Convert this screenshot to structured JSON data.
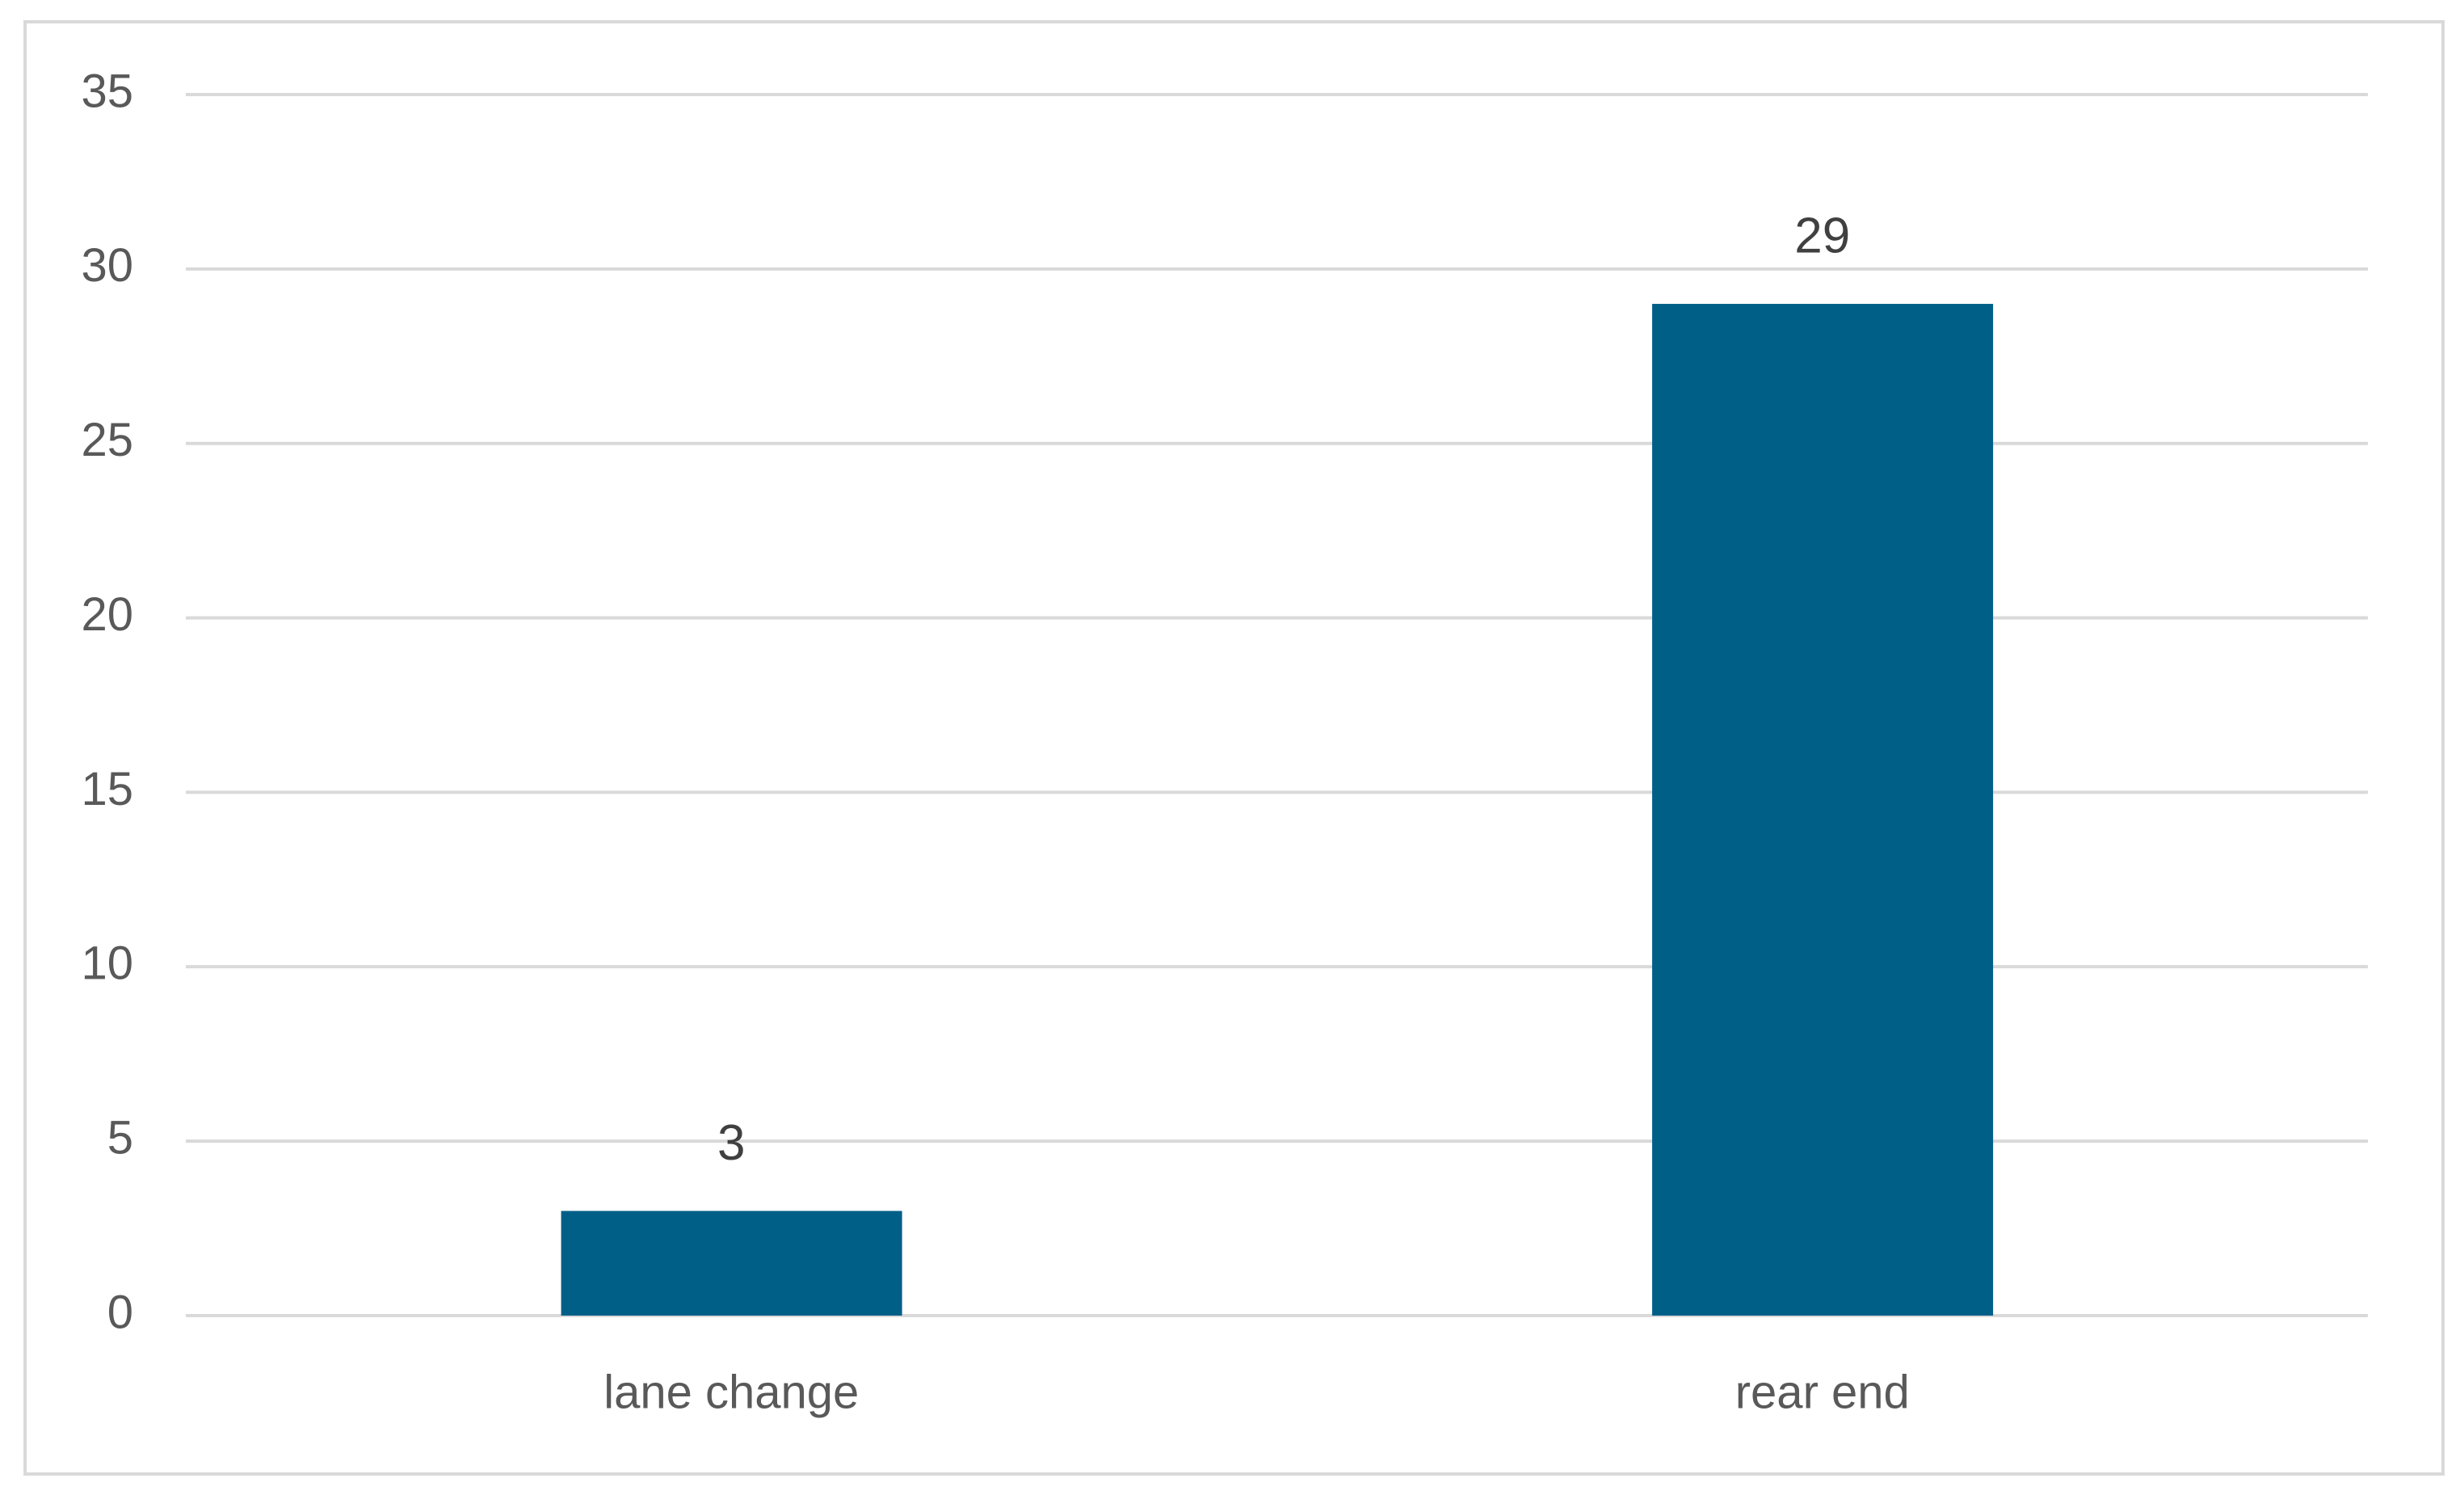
{
  "chart_data": {
    "type": "bar",
    "categories": [
      "lane change",
      "rear end"
    ],
    "values": [
      3,
      29
    ],
    "color": "#005f87",
    "ylim": [
      0,
      35
    ],
    "yticks": [
      0,
      5,
      10,
      15,
      20,
      25,
      30,
      35
    ],
    "grid": true
  }
}
